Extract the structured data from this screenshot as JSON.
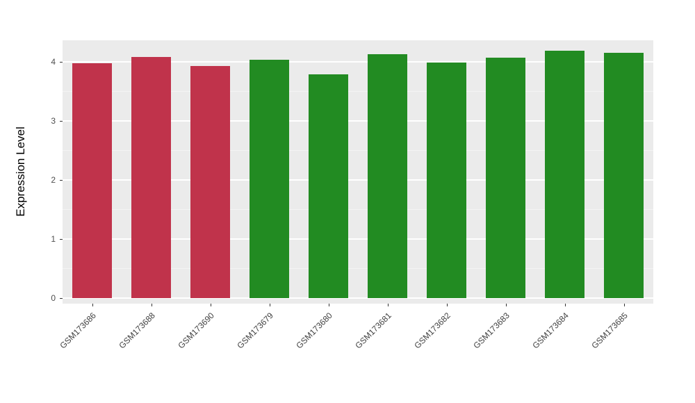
{
  "chart_data": {
    "type": "bar",
    "title": "",
    "xlabel": "",
    "ylabel": "Expression Level",
    "categories": [
      "GSM173686",
      "GSM173688",
      "GSM173690",
      "GSM173679",
      "GSM173680",
      "GSM173681",
      "GSM173682",
      "GSM173683",
      "GSM173684",
      "GSM173685"
    ],
    "values": [
      3.98,
      4.09,
      3.93,
      4.04,
      3.8,
      4.13,
      3.99,
      4.08,
      4.19,
      4.16
    ],
    "bar_colors": [
      "#C0334B",
      "#C0334B",
      "#C0334B",
      "#228B22",
      "#228B22",
      "#228B22",
      "#228B22",
      "#228B22",
      "#228B22",
      "#228B22"
    ],
    "group_colors": {
      "red_group": "#C0334B",
      "green_group": "#228B22"
    },
    "ylim": [
      0,
      4.35
    ],
    "yticks": [
      0,
      1,
      2,
      3,
      4
    ],
    "ytick_labels": [
      "0",
      "1",
      "2",
      "3",
      "4"
    ],
    "grid": true,
    "legend": "none",
    "panel_background": "#EBEBEB",
    "gridline_color": "#FFFFFF"
  }
}
